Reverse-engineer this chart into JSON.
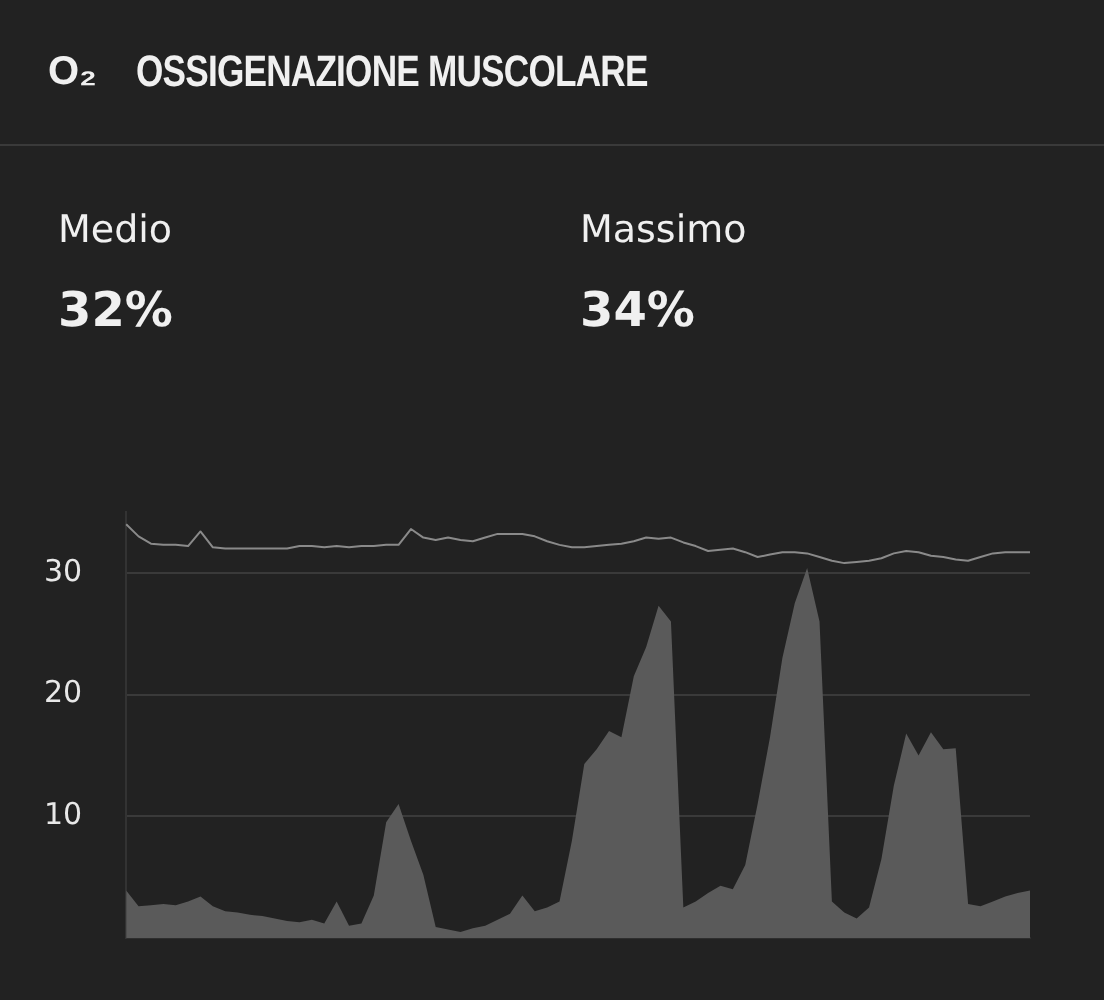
{
  "chart_data": {
    "type": "line",
    "title": "OSSIGENAZIONE MUSCOLARE",
    "annotations": [
      "O₂",
      "Medio",
      "32%",
      "Massimo",
      "34%"
    ],
    "categories": [
      null,
      null,
      null,
      null,
      null,
      null,
      null,
      null,
      null,
      null,
      null,
      null,
      null,
      null,
      null,
      null,
      null,
      null,
      null,
      null,
      null,
      null,
      null,
      null,
      null,
      null,
      null,
      null,
      null,
      null,
      null,
      null,
      null,
      null,
      null,
      null,
      null,
      null,
      null,
      null,
      null,
      null,
      null,
      null,
      null,
      null,
      null,
      null,
      null,
      null,
      null,
      null,
      null,
      null,
      null,
      null,
      null,
      null,
      null,
      null,
      null,
      null,
      null,
      null,
      null,
      null,
      null,
      null,
      null,
      null,
      null,
      null,
      null,
      null
    ],
    "series": [
      {
        "type": "area",
        "color": "#5a5a5a",
        "values": [
          3.9,
          2.6,
          2.7,
          2.8,
          2.7,
          3.0,
          3.4,
          2.6,
          2.2,
          2.1,
          1.9,
          1.8,
          1.6,
          1.4,
          1.3,
          1.5,
          1.2,
          3.0,
          1.0,
          1.2,
          3.5,
          9.5,
          11.0,
          8.0,
          5.2,
          0.9,
          0.7,
          0.5,
          0.8,
          1.0,
          1.5,
          2.0,
          3.5,
          2.2,
          2.5,
          3.0,
          8.0,
          14.3,
          15.5,
          17.0,
          16.5,
          21.5,
          23.9,
          27.3,
          26.0,
          2.5,
          3.0,
          3.7,
          4.3,
          4.0,
          6.0,
          11.0,
          16.5,
          23.0,
          27.5,
          30.4,
          26.0,
          3.0,
          2.1,
          1.6,
          2.5,
          6.5,
          12.5,
          16.8,
          15.0,
          16.9,
          15.5,
          15.6,
          2.8,
          2.6,
          3.0,
          3.4,
          3.7,
          3.9
        ]
      },
      {
        "type": "line",
        "color": "#8a8a8a",
        "values": [
          34.0,
          33.0,
          32.4,
          32.3,
          32.3,
          32.2,
          33.4,
          32.1,
          32.0,
          32.0,
          32.0,
          32.0,
          32.0,
          32.0,
          32.2,
          32.2,
          32.1,
          32.2,
          32.1,
          32.2,
          32.2,
          32.3,
          32.3,
          33.6,
          32.9,
          32.7,
          32.9,
          32.7,
          32.6,
          32.9,
          33.2,
          33.2,
          33.2,
          33.0,
          32.6,
          32.3,
          32.1,
          32.1,
          32.2,
          32.3,
          32.4,
          32.6,
          32.9,
          32.8,
          32.9,
          32.5,
          32.2,
          31.8,
          31.9,
          32.0,
          31.7,
          31.3,
          31.5,
          31.7,
          31.7,
          31.6,
          31.3,
          31.0,
          30.8,
          30.9,
          31.0,
          31.2,
          31.6,
          31.8,
          31.7,
          31.4,
          31.3,
          31.1,
          31.0,
          31.3,
          31.6,
          31.7,
          31.7,
          31.7
        ]
      }
    ],
    "ylim": [
      0,
      35
    ],
    "yticks": [
      10,
      20,
      30
    ],
    "grid": "y",
    "legend": false,
    "marker": "none"
  }
}
